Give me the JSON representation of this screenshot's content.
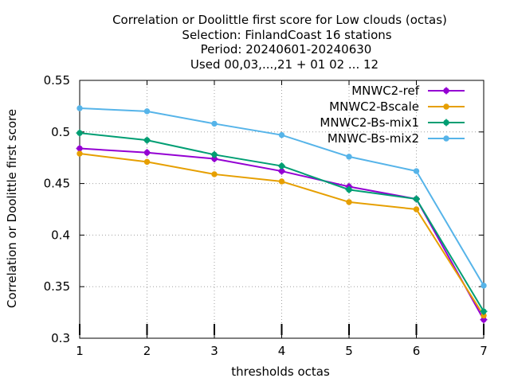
{
  "chart_data": {
    "type": "line",
    "title": [
      "Correlation or Doolittle first score  for Low clouds (octas)",
      "Selection: FinlandCoast     16 stations",
      "Period: 20240601-20240630",
      "Used 00,03,...,21 + 01 02 ... 12"
    ],
    "xlabel": "thresholds octas",
    "ylabel": "Correlation or Doolittle first score",
    "x": [
      1,
      2,
      3,
      4,
      5,
      6,
      7
    ],
    "xlim": [
      1,
      7
    ],
    "ylim": [
      0.3,
      0.55
    ],
    "xticks": [
      "1",
      "2",
      "3",
      "4",
      "5",
      "6",
      "7"
    ],
    "yticks": [
      "0.3",
      "0.35",
      "0.4",
      "0.45",
      "0.5",
      "0.55"
    ],
    "grid": true,
    "legend_position": "top-right",
    "series": [
      {
        "name": "MNWC2-ref",
        "color": "#9400d3",
        "marker": "plus-circle",
        "values": [
          0.484,
          0.48,
          0.474,
          0.462,
          0.447,
          0.435,
          0.318
        ]
      },
      {
        "name": "MNWC2-Bscale",
        "color": "#e69f00",
        "marker": "circle",
        "values": [
          0.479,
          0.471,
          0.459,
          0.452,
          0.432,
          0.425,
          0.322
        ]
      },
      {
        "name": "MNWC2-Bs-mix1",
        "color": "#009e73",
        "marker": "plus-circle",
        "values": [
          0.499,
          0.492,
          0.478,
          0.467,
          0.444,
          0.435,
          0.326
        ]
      },
      {
        "name": "MNWC-Bs-mix2",
        "color": "#56b4e9",
        "marker": "circle",
        "values": [
          0.523,
          0.52,
          0.508,
          0.497,
          0.476,
          0.462,
          0.351
        ]
      }
    ]
  }
}
